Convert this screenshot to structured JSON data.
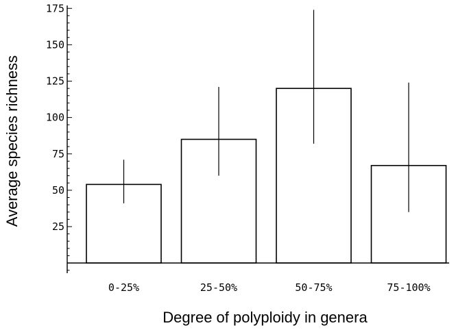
{
  "chart_data": {
    "type": "bar",
    "title": "",
    "xlabel": "Degree of polyploidy in genera",
    "ylabel": "Average species richness",
    "categories": [
      "0-25%",
      "25-50%",
      "50-75%",
      "75-100%"
    ],
    "values": [
      54,
      85,
      120,
      67
    ],
    "error_low": [
      41,
      60,
      82,
      35
    ],
    "error_high": [
      71,
      121,
      174,
      124
    ],
    "ylim": [
      -7,
      177
    ],
    "yticks": [
      25,
      50,
      75,
      100,
      125,
      150,
      175
    ],
    "grid": false,
    "legend": "none",
    "bar_fill": "#ffffff",
    "bar_stroke": "#000000"
  }
}
